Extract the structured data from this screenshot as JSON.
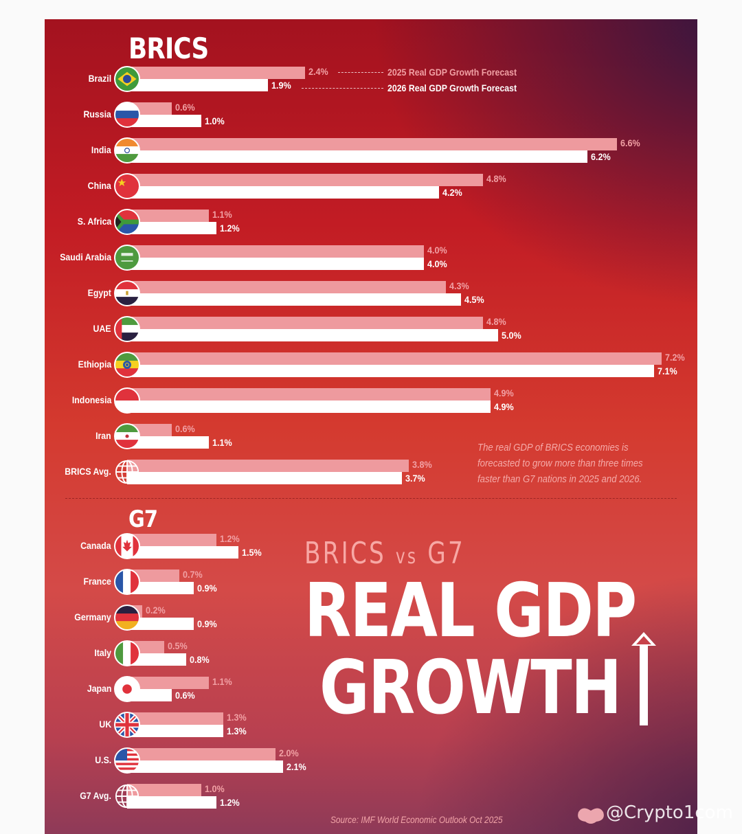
{
  "chart_data": {
    "type": "bar",
    "orientation": "horizontal",
    "title": "REAL GDP GROWTH",
    "subtitle": "BRICS vs G7",
    "value_unit": "%",
    "series": [
      {
        "name": "2025 Real GDP Growth Forecast",
        "key": "y2025",
        "color": "#ee9a9e"
      },
      {
        "name": "2026 Real GDP Growth Forecast",
        "key": "y2026",
        "color": "#ffffff"
      }
    ],
    "groups": [
      {
        "name": "BRICS",
        "rows": [
          {
            "label": "Brazil",
            "flag": "brazil-flag-icon",
            "y2025": 2.4,
            "y2026": 1.9
          },
          {
            "label": "Russia",
            "flag": "russia-flag-icon",
            "y2025": 0.6,
            "y2026": 1.0
          },
          {
            "label": "India",
            "flag": "india-flag-icon",
            "y2025": 6.6,
            "y2026": 6.2
          },
          {
            "label": "China",
            "flag": "china-flag-icon",
            "y2025": 4.8,
            "y2026": 4.2
          },
          {
            "label": "S. Africa",
            "flag": "south-africa-flag-icon",
            "y2025": 1.1,
            "y2026": 1.2
          },
          {
            "label": "Saudi Arabia",
            "flag": "saudi-arabia-flag-icon",
            "y2025": 4.0,
            "y2026": 4.0
          },
          {
            "label": "Egypt",
            "flag": "egypt-flag-icon",
            "y2025": 4.3,
            "y2026": 4.5
          },
          {
            "label": "UAE",
            "flag": "uae-flag-icon",
            "y2025": 4.8,
            "y2026": 5.0
          },
          {
            "label": "Ethiopia",
            "flag": "ethiopia-flag-icon",
            "y2025": 7.2,
            "y2026": 7.1
          },
          {
            "label": "Indonesia",
            "flag": "indonesia-flag-icon",
            "y2025": 4.9,
            "y2026": 4.9
          },
          {
            "label": "Iran",
            "flag": "iran-flag-icon",
            "y2025": 0.6,
            "y2026": 1.1
          },
          {
            "label": "BRICS Avg.",
            "flag": "globe-icon",
            "y2025": 3.8,
            "y2026": 3.7
          }
        ]
      },
      {
        "name": "G7",
        "rows": [
          {
            "label": "Canada",
            "flag": "canada-flag-icon",
            "y2025": 1.2,
            "y2026": 1.5
          },
          {
            "label": "France",
            "flag": "france-flag-icon",
            "y2025": 0.7,
            "y2026": 0.9
          },
          {
            "label": "Germany",
            "flag": "germany-flag-icon",
            "y2025": 0.2,
            "y2026": 0.9
          },
          {
            "label": "Italy",
            "flag": "italy-flag-icon",
            "y2025": 0.5,
            "y2026": 0.8
          },
          {
            "label": "Japan",
            "flag": "japan-flag-icon",
            "y2025": 1.1,
            "y2026": 0.6
          },
          {
            "label": "UK",
            "flag": "uk-flag-icon",
            "y2025": 1.3,
            "y2026": 1.3
          },
          {
            "label": "U.S.",
            "flag": "us-flag-icon",
            "y2025": 2.0,
            "y2026": 2.1
          },
          {
            "label": "G7 Avg.",
            "flag": "globe-icon",
            "y2025": 1.0,
            "y2026": 1.2
          }
        ]
      }
    ],
    "xlim": [
      0,
      7.2
    ],
    "grid": false,
    "legend": "inline-top-right",
    "annotation": "The real GDP of BRICS economies is forecasted to grow more than three times faster than G7 nations in 2025 and 2026.",
    "source": "Source: IMF World Economic Outlook Oct 2025"
  },
  "headline": {
    "subtitle_left": "BRICS",
    "subtitle_vs": "vs",
    "subtitle_right": "G7",
    "line1": "REAL GDP",
    "line2": "GROWTH"
  },
  "legend": {
    "label_2025": "2025 Real GDP Growth Forecast",
    "label_2026": "2026 Real GDP Growth Forecast"
  },
  "colors": {
    "bar_2025": "#ee9a9e",
    "bar_2026": "#ffffff",
    "label_2025": "#f1a0a4",
    "background_top": "#a3121f",
    "background_bottom": "#8e3a58"
  },
  "watermark": {
    "text": "@Crypto1com"
  }
}
